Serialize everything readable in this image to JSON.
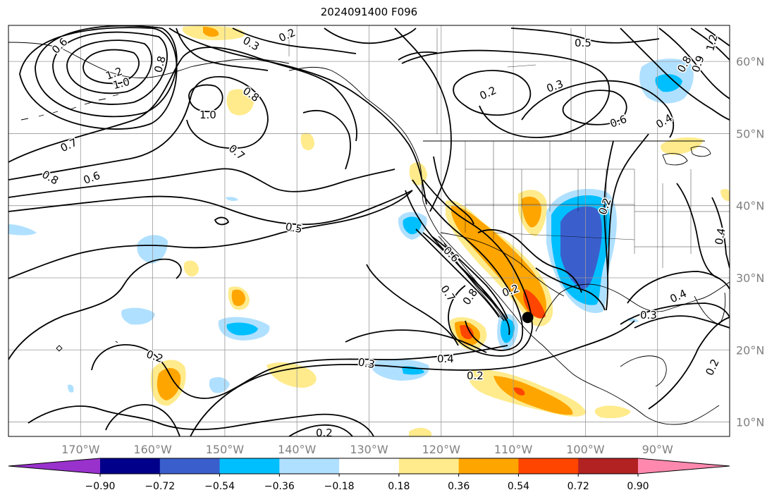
{
  "title": "2024091400 F096",
  "map": {
    "lon_range": [
      -180,
      -80
    ],
    "lat_range": [
      8,
      65
    ],
    "lon_ticks": [
      {
        "value": -170,
        "label": "170°W"
      },
      {
        "value": -160,
        "label": "160°W"
      },
      {
        "value": -150,
        "label": "150°W"
      },
      {
        "value": -140,
        "label": "140°W"
      },
      {
        "value": -130,
        "label": "130°W"
      },
      {
        "value": -120,
        "label": "120°W"
      },
      {
        "value": -110,
        "label": "110°W"
      },
      {
        "value": -100,
        "label": "100°W"
      },
      {
        "value": -90,
        "label": "90°W"
      }
    ],
    "lat_ticks": [
      {
        "value": 10,
        "label": "10°N"
      },
      {
        "value": 20,
        "label": "20°N"
      },
      {
        "value": 30,
        "label": "30°N"
      },
      {
        "value": 40,
        "label": "40°N"
      },
      {
        "value": 50,
        "label": "50°N"
      },
      {
        "value": 60,
        "label": "60°N"
      }
    ],
    "grid": true,
    "contour_labels": [
      "0.6",
      "1.2",
      "1.0",
      "0.8",
      "0.3",
      "0.2",
      "0.8",
      "1.0",
      "0.7",
      "0.8",
      "0.6",
      "0.7",
      "0.5",
      "0.5",
      "0.2",
      "0.3",
      "0.6",
      "0.4",
      "0.2",
      "0.2",
      "0.4",
      "0.3",
      "0.2",
      "0.3",
      "0.4",
      "0.2",
      "0.2",
      "0.7",
      "0.8",
      "0.6",
      "0.8",
      "1.2",
      "0.9",
      "0.4"
    ],
    "marker": {
      "lon": -108,
      "lat": 24.5
    }
  },
  "colorbar": {
    "colors": [
      "#9932cc",
      "#00008b",
      "#3a5fcd",
      "#00bfff",
      "#b0e0ff",
      "#ffffff",
      "#ffeb8c",
      "#ffa500",
      "#ff4500",
      "#b22222",
      "#ff89ae"
    ],
    "tick_labels": [
      "−0.90",
      "−0.72",
      "−0.54",
      "−0.36",
      "−0.18",
      "0.18",
      "0.36",
      "0.54",
      "0.72",
      "0.90"
    ]
  },
  "colors": {
    "pos1": "#ffeb8c",
    "pos2": "#ffa500",
    "pos3": "#ff4500",
    "neg1": "#b0e0ff",
    "neg2": "#00bfff",
    "neg3": "#3a5fcd"
  }
}
